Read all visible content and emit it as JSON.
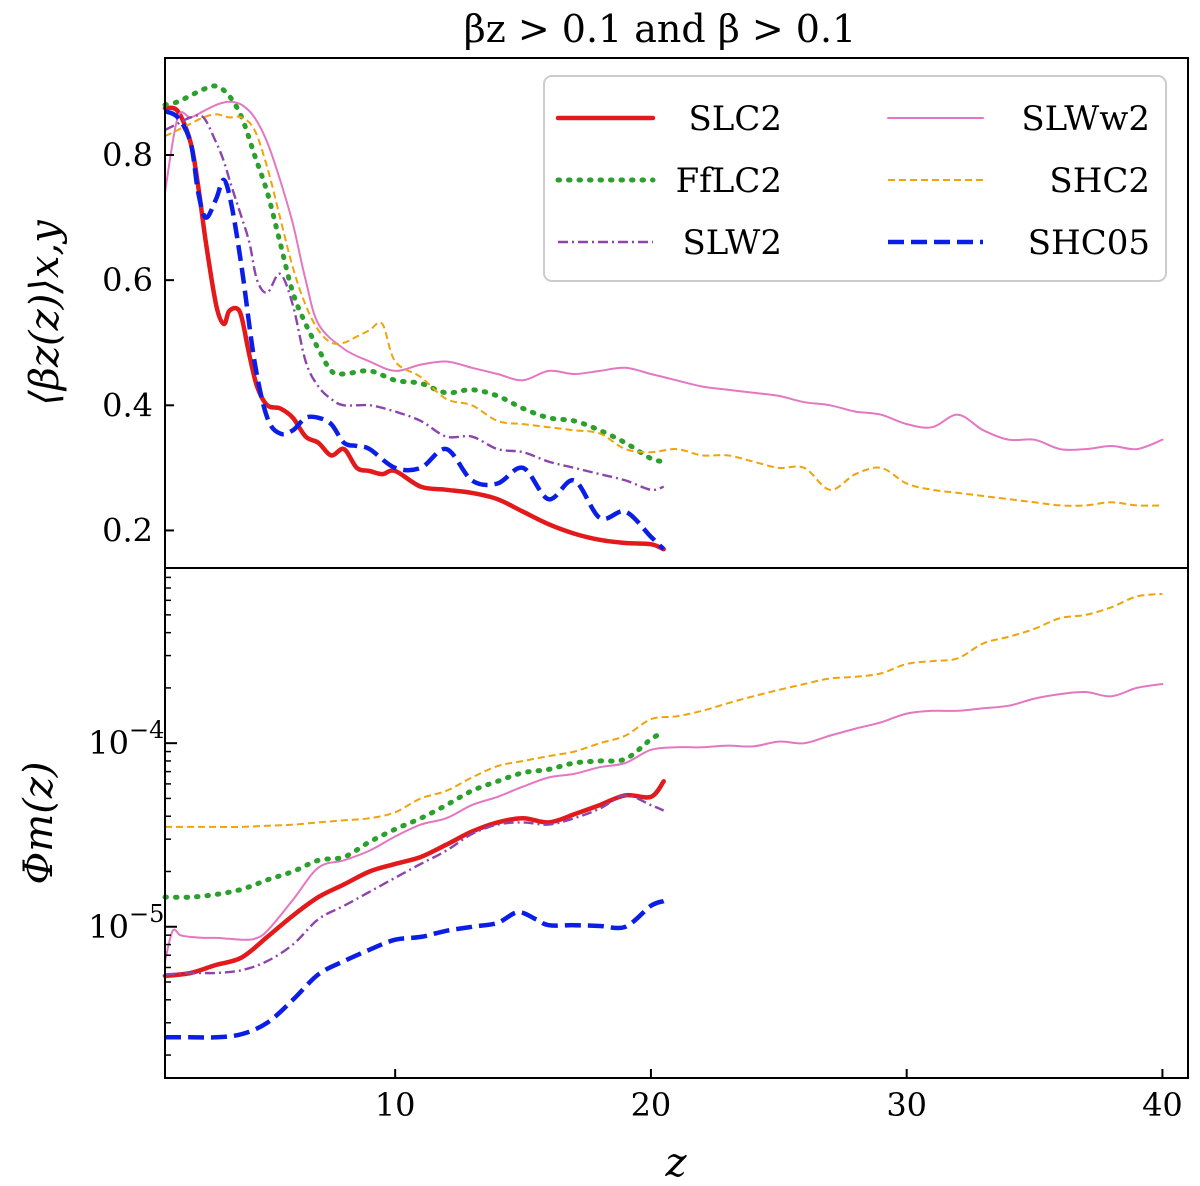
{
  "chart_data": [
    {
      "type": "line",
      "panel": "top",
      "title": "βz > 0.1 and β > 0.1",
      "ylabel": "⟨βz(z)⟩x,y",
      "xlim": [
        1,
        41
      ],
      "ylim": [
        0.14,
        0.955
      ],
      "yscale": "linear",
      "yticks": [
        0.2,
        0.4,
        0.6,
        0.8
      ],
      "ytick_labels": [
        "0.2",
        "0.4",
        "0.6",
        "0.8"
      ],
      "legend": {
        "placement": "top-right",
        "columns": 2
      },
      "series": [
        {
          "name": "SLC2",
          "color": "#e31a1c",
          "style": "solid-thick",
          "x": [
            1,
            1.5,
            2,
            2.3,
            2.6,
            3,
            3.3,
            3.5,
            3.8,
            4,
            4.3,
            4.6,
            5,
            5.5,
            6,
            6.5,
            7,
            7.5,
            8,
            8.5,
            9,
            9.5,
            10,
            11,
            12,
            13,
            14,
            15,
            16,
            17,
            18,
            19,
            20,
            20.5
          ],
          "y": [
            0.875,
            0.87,
            0.82,
            0.75,
            0.66,
            0.56,
            0.53,
            0.55,
            0.555,
            0.54,
            0.48,
            0.43,
            0.4,
            0.395,
            0.38,
            0.35,
            0.34,
            0.32,
            0.33,
            0.3,
            0.295,
            0.29,
            0.295,
            0.27,
            0.265,
            0.26,
            0.25,
            0.23,
            0.21,
            0.195,
            0.185,
            0.18,
            0.178,
            0.17
          ]
        },
        {
          "name": "SLWw2",
          "color": "#e377c2",
          "style": "thin",
          "x": [
            1,
            1.5,
            2,
            2.5,
            3,
            3.5,
            4,
            4.5,
            5,
            5.5,
            6,
            6.5,
            7,
            8,
            9,
            10,
            11,
            12,
            13,
            14,
            15,
            16,
            17,
            18,
            19,
            20,
            21,
            22,
            23,
            24,
            25,
            26,
            27,
            28,
            29,
            30,
            31,
            32,
            33,
            34,
            35,
            36,
            37,
            38,
            39,
            40
          ],
          "y": [
            0.74,
            0.86,
            0.86,
            0.87,
            0.88,
            0.885,
            0.88,
            0.86,
            0.82,
            0.76,
            0.69,
            0.6,
            0.53,
            0.49,
            0.47,
            0.455,
            0.465,
            0.47,
            0.46,
            0.45,
            0.44,
            0.455,
            0.45,
            0.455,
            0.46,
            0.45,
            0.44,
            0.43,
            0.425,
            0.42,
            0.415,
            0.405,
            0.4,
            0.39,
            0.385,
            0.37,
            0.365,
            0.385,
            0.36,
            0.345,
            0.345,
            0.33,
            0.33,
            0.335,
            0.33,
            0.345
          ]
        },
        {
          "name": "FfLC2",
          "color": "#2ca02c",
          "style": "dotted",
          "x": [
            1,
            1.5,
            2,
            2.5,
            3,
            3.5,
            4,
            4.5,
            5,
            5.5,
            6,
            6.5,
            7,
            7.5,
            8,
            9,
            10,
            11,
            12,
            13,
            14,
            15,
            16,
            17,
            18,
            19,
            20,
            20.5
          ],
          "y": [
            0.88,
            0.885,
            0.895,
            0.905,
            0.91,
            0.895,
            0.86,
            0.8,
            0.74,
            0.66,
            0.58,
            0.53,
            0.49,
            0.455,
            0.45,
            0.455,
            0.44,
            0.435,
            0.42,
            0.425,
            0.415,
            0.395,
            0.38,
            0.375,
            0.36,
            0.34,
            0.315,
            0.31
          ]
        },
        {
          "name": "SHC2",
          "color": "#f0a30a",
          "style": "dashed-thin",
          "x": [
            1,
            1.5,
            2,
            2.5,
            3,
            3.5,
            4,
            4.5,
            5,
            5.5,
            6,
            6.5,
            7,
            7.5,
            8,
            8.5,
            9,
            9.5,
            10,
            11,
            12,
            13,
            14,
            15,
            16,
            17,
            18,
            19,
            20,
            21,
            22,
            23,
            24,
            25,
            26,
            27,
            28,
            29,
            30,
            31,
            32,
            33,
            34,
            35,
            36,
            37,
            38,
            39,
            40
          ],
          "y": [
            0.83,
            0.84,
            0.85,
            0.86,
            0.865,
            0.86,
            0.86,
            0.84,
            0.78,
            0.7,
            0.62,
            0.56,
            0.52,
            0.5,
            0.5,
            0.51,
            0.52,
            0.53,
            0.47,
            0.445,
            0.41,
            0.4,
            0.375,
            0.37,
            0.365,
            0.36,
            0.355,
            0.33,
            0.325,
            0.33,
            0.32,
            0.32,
            0.31,
            0.3,
            0.3,
            0.265,
            0.29,
            0.3,
            0.275,
            0.265,
            0.26,
            0.255,
            0.25,
            0.245,
            0.24,
            0.24,
            0.245,
            0.24,
            0.24
          ]
        },
        {
          "name": "SLW2",
          "color": "#8e44ad",
          "style": "dashdot",
          "x": [
            1,
            1.5,
            2,
            2.5,
            3,
            3.3,
            3.6,
            4,
            4.3,
            4.6,
            5,
            5.5,
            6,
            6.5,
            7,
            7.5,
            8,
            9,
            10,
            11,
            12,
            13,
            14,
            15,
            16,
            17,
            18,
            19,
            20,
            20.5
          ],
          "y": [
            0.84,
            0.85,
            0.86,
            0.86,
            0.82,
            0.79,
            0.75,
            0.7,
            0.66,
            0.6,
            0.58,
            0.61,
            0.56,
            0.47,
            0.43,
            0.41,
            0.4,
            0.4,
            0.39,
            0.375,
            0.35,
            0.35,
            0.33,
            0.325,
            0.31,
            0.3,
            0.29,
            0.28,
            0.265,
            0.27
          ]
        },
        {
          "name": "SHC05",
          "color": "#0a1ee8",
          "style": "dashed-thick",
          "x": [
            1,
            1.5,
            2,
            2.3,
            2.6,
            3,
            3.3,
            3.6,
            4,
            4.5,
            5,
            5.5,
            6,
            6.5,
            7,
            7.5,
            8,
            8.5,
            9,
            10,
            11,
            12,
            13,
            14,
            15,
            16,
            17,
            18,
            19,
            20,
            20.5
          ],
          "y": [
            0.87,
            0.86,
            0.82,
            0.74,
            0.7,
            0.73,
            0.76,
            0.72,
            0.62,
            0.47,
            0.38,
            0.355,
            0.36,
            0.38,
            0.38,
            0.37,
            0.34,
            0.335,
            0.33,
            0.3,
            0.3,
            0.33,
            0.28,
            0.275,
            0.3,
            0.25,
            0.28,
            0.22,
            0.23,
            0.19,
            0.17
          ]
        }
      ]
    },
    {
      "type": "line",
      "panel": "bottom",
      "xlabel": "z",
      "ylabel": "Φm(z)",
      "xlim": [
        1,
        41
      ],
      "ylim": [
        1.5e-06,
        0.0009
      ],
      "yscale": "log",
      "xticks": [
        10,
        20,
        30,
        40
      ],
      "xtick_labels": [
        "10",
        "20",
        "30",
        "40"
      ],
      "ytick_labels": [
        {
          "base": "10",
          "exp": "−5"
        },
        {
          "base": "10",
          "exp": "−4"
        }
      ],
      "series": [
        {
          "name": "SHC2",
          "color": "#f0a30a",
          "style": "dashed-thin",
          "x": [
            1,
            2,
            3,
            4,
            5,
            6,
            7,
            8,
            9,
            10,
            11,
            12,
            13,
            14,
            15,
            16,
            17,
            18,
            19,
            20,
            21,
            22,
            23,
            24,
            25,
            26,
            27,
            28,
            29,
            30,
            31,
            32,
            33,
            34,
            35,
            36,
            37,
            38,
            39,
            40
          ],
          "y": [
            3.5e-05,
            3.5e-05,
            3.5e-05,
            3.5e-05,
            3.55e-05,
            3.6e-05,
            3.7e-05,
            3.8e-05,
            3.9e-05,
            4.2e-05,
            5e-05,
            5.5e-05,
            6.5e-05,
            7.5e-05,
            8e-05,
            8.5e-05,
            9e-05,
            0.0001,
            0.00011,
            0.000135,
            0.00014,
            0.00015,
            0.000165,
            0.00018,
            0.000195,
            0.00021,
            0.000225,
            0.00023,
            0.00024,
            0.00027,
            0.00028,
            0.00029,
            0.00035,
            0.00038,
            0.00042,
            0.00048,
            0.0005,
            0.00055,
            0.00063,
            0.00065
          ]
        },
        {
          "name": "SLWw2",
          "color": "#e377c2",
          "style": "thin",
          "x": [
            1,
            1.3,
            1.6,
            2,
            2.5,
            3,
            3.5,
            4,
            4.5,
            5,
            6,
            7,
            8,
            9,
            10,
            11,
            12,
            13,
            14,
            15,
            16,
            17,
            18,
            19,
            20,
            21,
            22,
            23,
            24,
            25,
            26,
            27,
            28,
            29,
            30,
            31,
            32,
            33,
            34,
            35,
            36,
            37,
            38,
            39,
            40
          ],
          "y": [
            6.5e-06,
            9.5e-06,
            9e-06,
            8.8e-06,
            8.7e-06,
            8.7e-06,
            8.6e-06,
            8.5e-06,
            8.6e-06,
            9.5e-06,
            1.4e-05,
            2.1e-05,
            2.3e-05,
            2.6e-05,
            3.1e-05,
            3.6e-05,
            3.9e-05,
            4.6e-05,
            5.1e-05,
            5.8e-05,
            6.5e-05,
            6.8e-05,
            7.4e-05,
            7.8e-05,
            9.2e-05,
            9.5e-05,
            9.5e-05,
            9.7e-05,
            9.6e-05,
            0.000102,
            0.0001,
            0.00011,
            0.00012,
            0.00013,
            0.000145,
            0.00015,
            0.00015,
            0.000155,
            0.00016,
            0.000175,
            0.000185,
            0.00019,
            0.00018,
            0.0002,
            0.00021
          ]
        },
        {
          "name": "FfLC2",
          "color": "#2ca02c",
          "style": "dotted",
          "x": [
            1,
            2,
            3,
            4,
            5,
            6,
            7,
            8,
            9,
            10,
            11,
            12,
            13,
            14,
            15,
            16,
            17,
            18,
            19,
            20,
            20.5
          ],
          "y": [
            1.45e-05,
            1.45e-05,
            1.5e-05,
            1.6e-05,
            1.8e-05,
            2e-05,
            2.3e-05,
            2.4e-05,
            2.9e-05,
            3.4e-05,
            3.9e-05,
            4.6e-05,
            5.5e-05,
            6.2e-05,
            6.9e-05,
            7.2e-05,
            7.8e-05,
            8e-05,
            8.2e-05,
            0.000105,
            0.000115
          ]
        },
        {
          "name": "SLC2",
          "color": "#e31a1c",
          "style": "solid-thick",
          "x": [
            1,
            2,
            3,
            4,
            5,
            6,
            7,
            8,
            9,
            10,
            11,
            12,
            13,
            14,
            15,
            16,
            17,
            18,
            19,
            20,
            20.5
          ],
          "y": [
            5.4e-06,
            5.6e-06,
            6.2e-06,
            6.8e-06,
            8.8e-06,
            1.15e-05,
            1.45e-05,
            1.7e-05,
            2e-05,
            2.2e-05,
            2.4e-05,
            2.8e-05,
            3.3e-05,
            3.7e-05,
            3.9e-05,
            3.7e-05,
            4.1e-05,
            4.6e-05,
            5.2e-05,
            5.1e-05,
            6.2e-05
          ]
        },
        {
          "name": "SLW2",
          "color": "#8e44ad",
          "style": "dashdot",
          "x": [
            1,
            2,
            3,
            4,
            5,
            6,
            7,
            8,
            9,
            10,
            11,
            12,
            13,
            14,
            15,
            16,
            17,
            18,
            19,
            20,
            20.5
          ],
          "y": [
            5.5e-06,
            5.6e-06,
            5.6e-06,
            5.8e-06,
            6.5e-06,
            8e-06,
            1.1e-05,
            1.3e-05,
            1.55e-05,
            1.85e-05,
            2.2e-05,
            2.6e-05,
            3.2e-05,
            3.6e-05,
            3.7e-05,
            3.6e-05,
            3.9e-05,
            4.4e-05,
            5.2e-05,
            4.6e-05,
            4.3e-05
          ]
        },
        {
          "name": "SHC05",
          "color": "#0a1ee8",
          "style": "dashed-thick",
          "x": [
            1,
            2,
            3,
            4,
            5,
            6,
            7,
            8,
            9,
            10,
            11,
            12,
            13,
            14,
            14.8,
            15.5,
            16,
            17,
            18,
            19,
            20,
            20.5
          ],
          "y": [
            2.5e-06,
            2.5e-06,
            2.5e-06,
            2.6e-06,
            3e-06,
            4e-06,
            5.5e-06,
            6.5e-06,
            7.5e-06,
            8.5e-06,
            8.8e-06,
            9.5e-06,
            1e-05,
            1.05e-05,
            1.2e-05,
            1.1e-05,
            1.02e-05,
            1.02e-05,
            1.01e-05,
            1e-05,
            1.3e-05,
            1.38e-05
          ]
        }
      ]
    }
  ]
}
